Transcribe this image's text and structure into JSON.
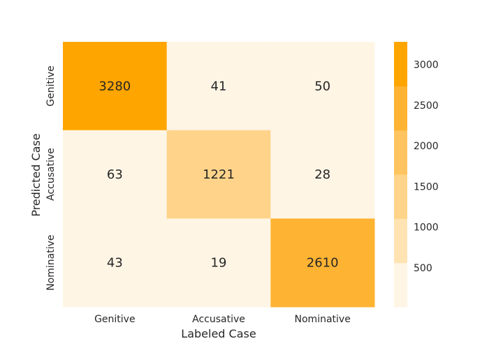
{
  "chart_data": {
    "type": "heatmap",
    "title": "",
    "xlabel": "Labeled Case",
    "ylabel": "Predicted Case",
    "x_categories": [
      "Genitive",
      "Accusative",
      "Nominative"
    ],
    "y_categories": [
      "Genitive",
      "Accusative",
      "Nominative"
    ],
    "values": [
      [
        3280,
        41,
        50
      ],
      [
        63,
        1221,
        28
      ],
      [
        43,
        19,
        2610
      ]
    ],
    "colorbar": {
      "min": 19,
      "max": 3280,
      "ticks": [
        500,
        1000,
        1500,
        2000,
        2500,
        3000
      ],
      "colors": [
        "#fff5e5",
        "#ffe3b2",
        "#ffd48a",
        "#ffc45f",
        "#ffb333",
        "#ffa500"
      ]
    }
  }
}
